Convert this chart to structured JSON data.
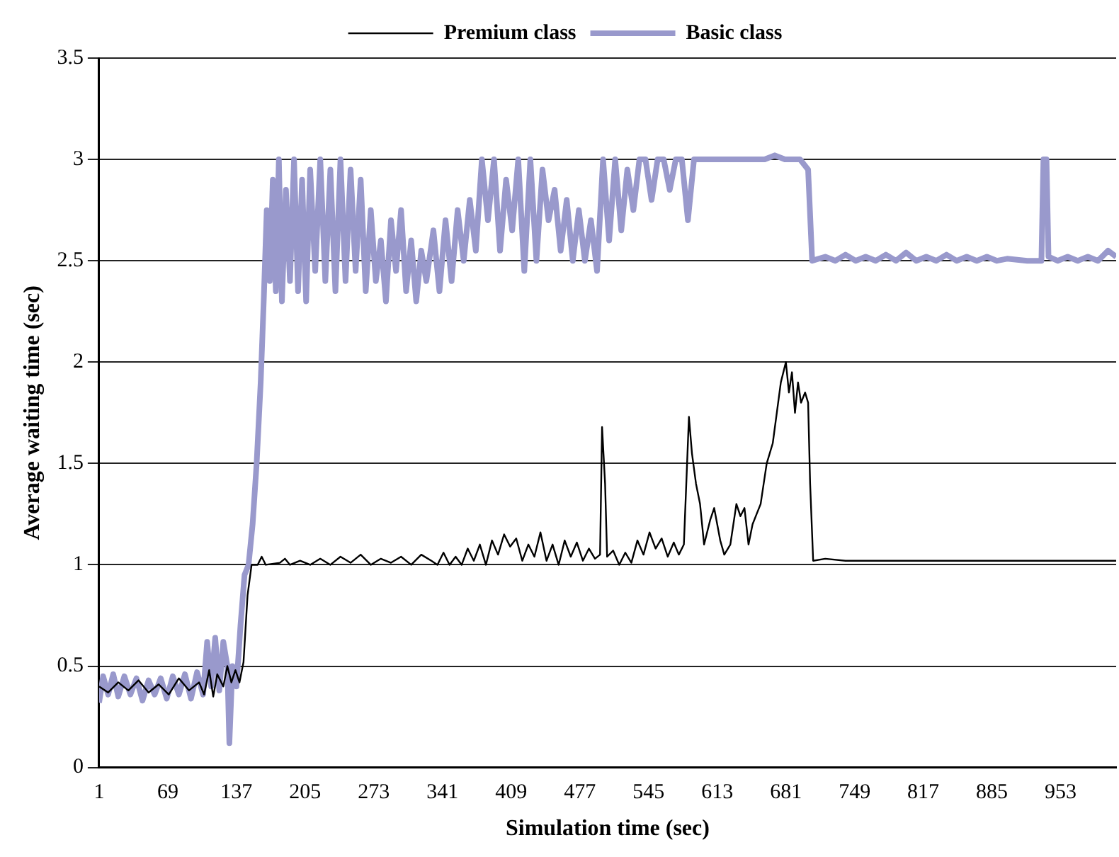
{
  "chart_data": {
    "type": "line",
    "xlabel": "Simulation time (sec)",
    "ylabel": "Average waiting time (sec)",
    "xlim": [
      1,
      1008
    ],
    "xticks": [
      1,
      69,
      137,
      205,
      273,
      341,
      409,
      477,
      545,
      613,
      681,
      749,
      817,
      885,
      953
    ],
    "ylim": [
      0,
      3.5
    ],
    "yticks": [
      0,
      0.5,
      1,
      1.5,
      2,
      2.5,
      3,
      3.5
    ],
    "grid": "y",
    "legend": "top",
    "marker": "none",
    "line_style": "solid",
    "series": [
      {
        "name": "Premium class",
        "color": "#000000",
        "x": [
          1,
          10,
          20,
          30,
          40,
          50,
          60,
          70,
          80,
          90,
          100,
          105,
          110,
          114,
          118,
          124,
          128,
          132,
          136,
          140,
          144,
          148,
          152,
          158,
          162,
          166,
          180,
          185,
          190,
          200,
          210,
          220,
          230,
          240,
          250,
          260,
          270,
          280,
          290,
          300,
          310,
          320,
          330,
          336,
          342,
          348,
          354,
          360,
          366,
          372,
          378,
          384,
          390,
          396,
          402,
          408,
          414,
          420,
          426,
          432,
          438,
          444,
          450,
          456,
          462,
          468,
          474,
          480,
          486,
          492,
          497,
          499,
          502,
          504,
          510,
          516,
          522,
          528,
          534,
          540,
          546,
          552,
          558,
          564,
          570,
          575,
          580,
          585,
          588,
          592,
          596,
          600,
          606,
          610,
          616,
          620,
          626,
          632,
          636,
          640,
          644,
          648,
          652,
          656,
          662,
          668,
          672,
          676,
          681,
          684,
          687,
          690,
          693,
          696,
          700,
          703,
          705,
          708,
          720,
          740,
          1008
        ],
        "values": [
          0.4,
          0.37,
          0.42,
          0.38,
          0.43,
          0.37,
          0.41,
          0.36,
          0.44,
          0.38,
          0.42,
          0.36,
          0.48,
          0.35,
          0.46,
          0.4,
          0.5,
          0.42,
          0.48,
          0.42,
          0.52,
          0.85,
          1.0,
          1.0,
          1.04,
          1.0,
          1.01,
          1.03,
          1.0,
          1.02,
          1.0,
          1.03,
          1.0,
          1.04,
          1.01,
          1.05,
          1.0,
          1.03,
          1.01,
          1.04,
          1.0,
          1.05,
          1.02,
          1.0,
          1.06,
          1.0,
          1.04,
          1.0,
          1.08,
          1.02,
          1.1,
          1.0,
          1.12,
          1.05,
          1.15,
          1.09,
          1.13,
          1.02,
          1.1,
          1.04,
          1.16,
          1.02,
          1.1,
          1.0,
          1.12,
          1.04,
          1.11,
          1.02,
          1.08,
          1.03,
          1.05,
          1.68,
          1.4,
          1.04,
          1.07,
          1.0,
          1.06,
          1.01,
          1.12,
          1.05,
          1.16,
          1.08,
          1.13,
          1.04,
          1.11,
          1.05,
          1.1,
          1.73,
          1.55,
          1.4,
          1.3,
          1.1,
          1.22,
          1.28,
          1.12,
          1.05,
          1.1,
          1.3,
          1.24,
          1.28,
          1.1,
          1.2,
          1.25,
          1.3,
          1.5,
          1.6,
          1.75,
          1.9,
          2.0,
          1.85,
          1.95,
          1.75,
          1.9,
          1.8,
          1.85,
          1.8,
          1.4,
          1.02,
          1.03,
          1.02,
          1.02
        ]
      },
      {
        "name": "Basic class",
        "color": "#9999cc",
        "x": [
          1,
          5,
          10,
          15,
          20,
          26,
          32,
          38,
          44,
          50,
          56,
          62,
          68,
          74,
          80,
          86,
          92,
          98,
          104,
          108,
          112,
          116,
          120,
          124,
          128,
          130,
          133,
          137,
          141,
          145,
          149,
          153,
          157,
          161,
          164,
          167,
          170,
          173,
          176,
          179,
          182,
          186,
          190,
          194,
          198,
          202,
          206,
          210,
          215,
          220,
          225,
          230,
          235,
          240,
          245,
          250,
          255,
          260,
          265,
          270,
          275,
          280,
          285,
          290,
          295,
          300,
          305,
          310,
          315,
          320,
          325,
          332,
          338,
          344,
          350,
          356,
          362,
          368,
          374,
          380,
          386,
          392,
          398,
          404,
          410,
          416,
          422,
          428,
          434,
          440,
          446,
          452,
          458,
          464,
          470,
          476,
          482,
          488,
          494,
          500,
          506,
          512,
          518,
          524,
          530,
          536,
          542,
          548,
          554,
          560,
          566,
          572,
          578,
          584,
          590,
          600,
          610,
          620,
          630,
          640,
          650,
          660,
          670,
          680,
          695,
          703,
          707,
          720,
          730,
          740,
          750,
          760,
          770,
          780,
          790,
          800,
          810,
          820,
          830,
          840,
          850,
          860,
          870,
          880,
          890,
          900,
          920,
          934,
          936,
          939,
          941,
          950,
          960,
          970,
          980,
          990,
          1000,
          1008
        ],
        "values": [
          0.32,
          0.45,
          0.36,
          0.46,
          0.35,
          0.45,
          0.36,
          0.44,
          0.33,
          0.43,
          0.36,
          0.44,
          0.34,
          0.45,
          0.36,
          0.46,
          0.34,
          0.47,
          0.36,
          0.62,
          0.4,
          0.64,
          0.38,
          0.62,
          0.5,
          0.12,
          0.5,
          0.4,
          0.7,
          0.95,
          1.0,
          1.2,
          1.5,
          1.9,
          2.3,
          2.75,
          2.4,
          2.9,
          2.35,
          3.0,
          2.3,
          2.85,
          2.4,
          3.0,
          2.35,
          2.9,
          2.3,
          2.95,
          2.45,
          3.0,
          2.4,
          2.95,
          2.35,
          3.0,
          2.4,
          2.95,
          2.45,
          2.9,
          2.35,
          2.75,
          2.4,
          2.6,
          2.3,
          2.7,
          2.45,
          2.75,
          2.35,
          2.6,
          2.3,
          2.55,
          2.4,
          2.65,
          2.35,
          2.7,
          2.4,
          2.75,
          2.5,
          2.8,
          2.55,
          3.0,
          2.7,
          3.0,
          2.55,
          2.9,
          2.65,
          3.0,
          2.45,
          3.0,
          2.5,
          2.95,
          2.7,
          2.85,
          2.55,
          2.8,
          2.5,
          2.75,
          2.5,
          2.7,
          2.45,
          3.0,
          2.6,
          3.0,
          2.65,
          2.95,
          2.75,
          3.0,
          3.0,
          2.8,
          3.0,
          3.0,
          2.85,
          3.0,
          3.0,
          2.7,
          3.0,
          3.0,
          3.0,
          3.0,
          3.0,
          3.0,
          3.0,
          3.0,
          3.02,
          3.0,
          3.0,
          2.95,
          2.5,
          2.52,
          2.5,
          2.53,
          2.5,
          2.52,
          2.5,
          2.53,
          2.5,
          2.54,
          2.5,
          2.52,
          2.5,
          2.53,
          2.5,
          2.52,
          2.5,
          2.52,
          2.5,
          2.51,
          2.5,
          2.5,
          3.0,
          3.0,
          2.52,
          2.5,
          2.52,
          2.5,
          2.52,
          2.5,
          2.55,
          2.52
        ]
      }
    ]
  }
}
